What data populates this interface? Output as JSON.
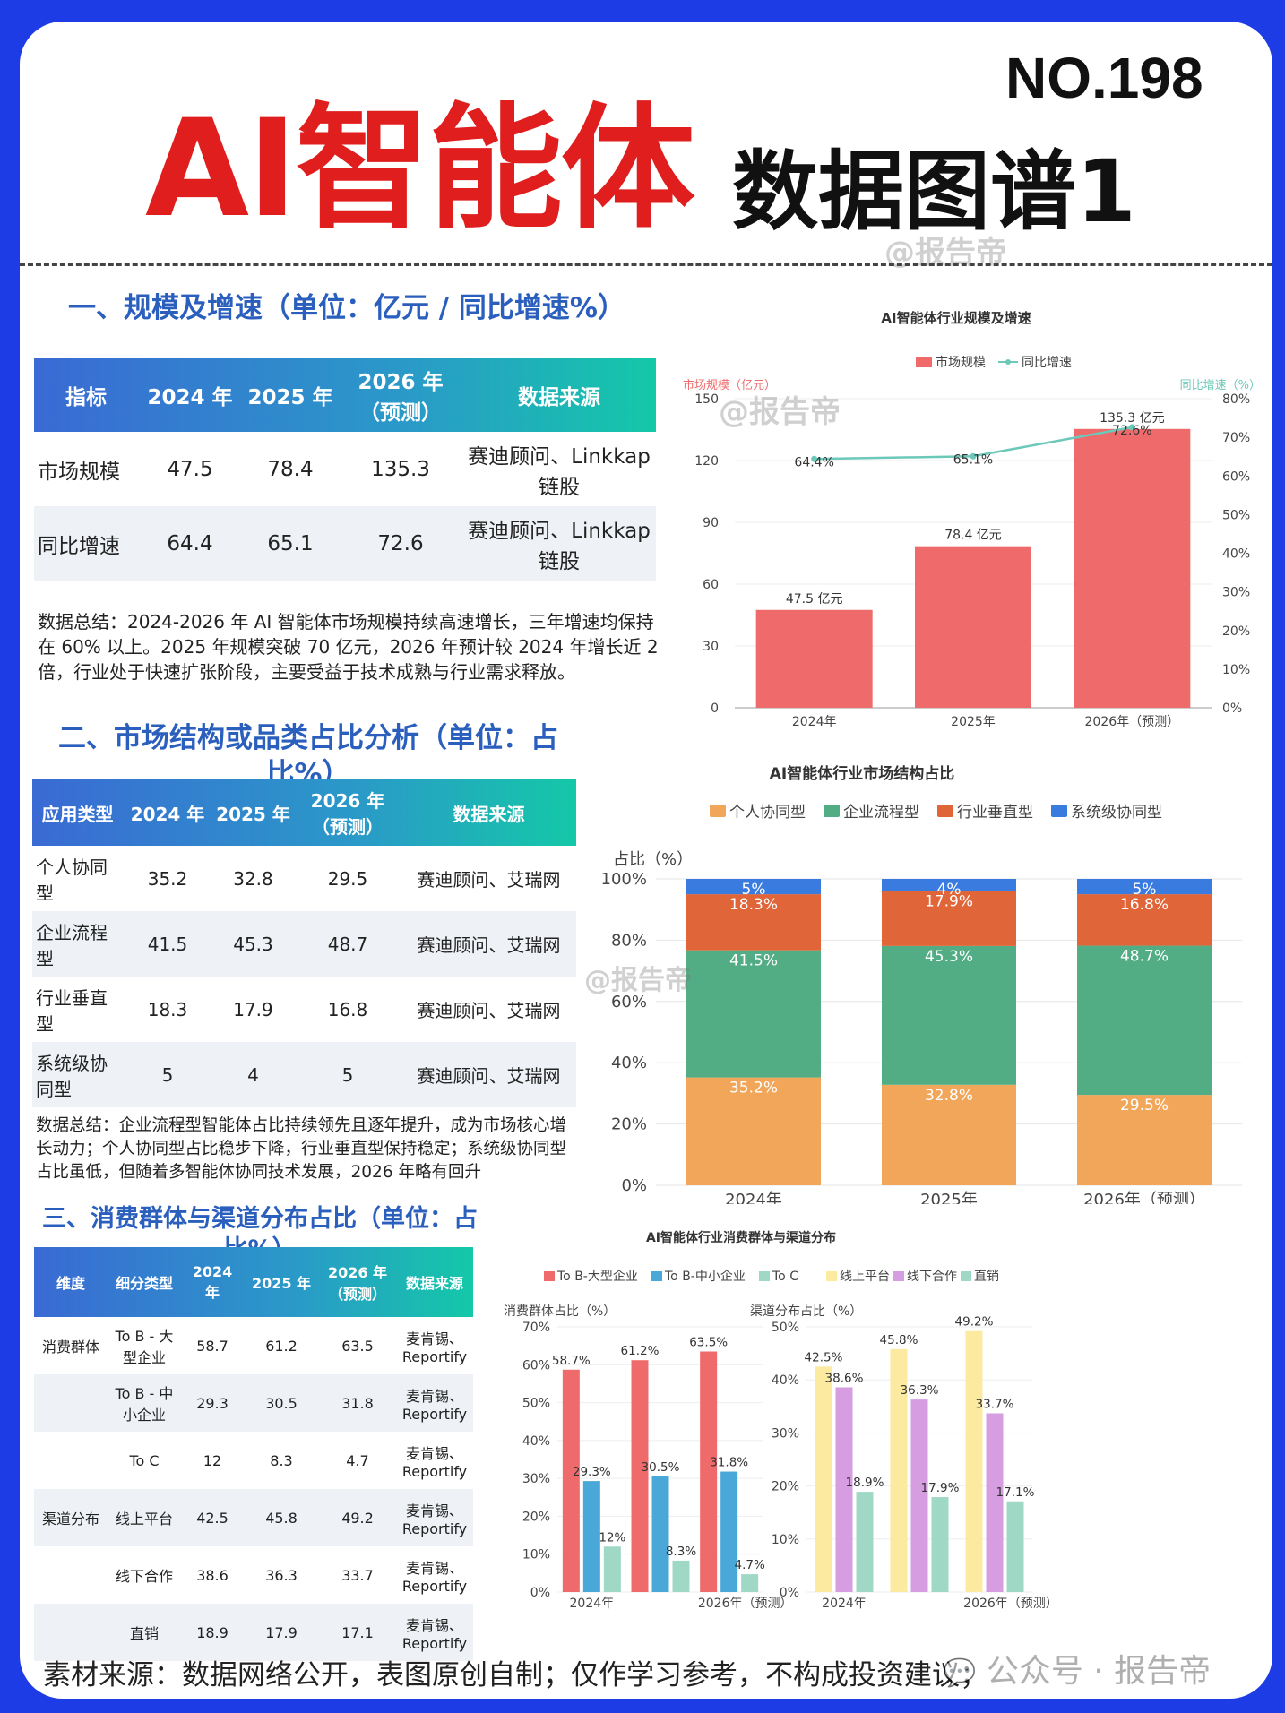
{
  "header": {
    "number": "NO.198",
    "title_main": "AI智能体",
    "title_sub": "数据图谱1",
    "watermark": "@报告帝"
  },
  "section1": {
    "title": "一、规模及增速（单位：亿元 / 同比增速%）",
    "headers": [
      "指标",
      "2024 年",
      "2025 年",
      "2026 年（预测）",
      "数据来源"
    ],
    "rows": [
      [
        "市场规模",
        "47.5",
        "78.4",
        "135.3",
        "赛迪顾问、Linkkap链股"
      ],
      [
        "同比增速",
        "64.4",
        "65.1",
        "72.6",
        "赛迪顾问、Linkkap链股"
      ]
    ],
    "summary": "数据总结：2024-2026 年 AI 智能体市场规模持续高速增长，三年增速均保持在 60% 以上。2025 年规模突破 70 亿元，2026 年预计较 2024 年增长近 2 倍，行业处于快速扩张阶段，主要受益于技术成熟与行业需求释放。"
  },
  "section2": {
    "title": "二、市场结构或品类占比分析（单位：占比%）",
    "headers": [
      "应用类型",
      "2024 年",
      "2025 年",
      "2026 年（预测）",
      "数据来源"
    ],
    "rows": [
      [
        "个人协同型",
        "35.2",
        "32.8",
        "29.5",
        "赛迪顾问、艾瑞网"
      ],
      [
        "企业流程型",
        "41.5",
        "45.3",
        "48.7",
        "赛迪顾问、艾瑞网"
      ],
      [
        "行业垂直型",
        "18.3",
        "17.9",
        "16.8",
        "赛迪顾问、艾瑞网"
      ],
      [
        "系统级协同型",
        "5",
        "4",
        "5",
        "赛迪顾问、艾瑞网"
      ]
    ],
    "summary": "数据总结：企业流程型智能体占比持续领先且逐年提升，成为市场核心增长动力；个人协同型占比稳步下降，行业垂直型保持稳定；系统级协同型占比虽低，但随着多智能体协同技术发展，2026 年略有回升"
  },
  "section3": {
    "title": "三、消费群体与渠道分布占比（单位：占比%）",
    "headers": [
      "维度",
      "细分类型",
      "2024 年",
      "2025 年",
      "2026 年（预测）",
      "数据来源"
    ],
    "rows": [
      [
        "消费群体",
        "To B - 大型企业",
        "58.7",
        "61.2",
        "63.5",
        "麦肯锡、Reportify"
      ],
      [
        "",
        "To B - 中小企业",
        "29.3",
        "30.5",
        "31.8",
        "麦肯锡、Reportify"
      ],
      [
        "",
        "To C",
        "12",
        "8.3",
        "4.7",
        "麦肯锡、Reportify"
      ],
      [
        "渠道分布",
        "线上平台",
        "42.5",
        "45.8",
        "49.2",
        "麦肯锡、Reportify"
      ],
      [
        "",
        "线下合作",
        "38.6",
        "36.3",
        "33.7",
        "麦肯锡、Reportify"
      ],
      [
        "",
        "直销",
        "18.9",
        "17.9",
        "17.1",
        "麦肯锡、Reportify"
      ]
    ]
  },
  "footer": {
    "source": "素材来源：数据网络公开，表图原创自制；仅作学习参考，不构成投资建议；",
    "account": "公众号 · 报告帝"
  },
  "colors": {
    "red": "#ef6b6b",
    "teal": "#6cc8b8",
    "orange": "#f2a65a",
    "green": "#52ad85",
    "vermilion": "#e0663a",
    "blue": "#3a7be0",
    "cyan": "#4aa8d8",
    "mint": "#9fd8c4",
    "yellow": "#fbeaa0",
    "purple": "#d69ee0"
  },
  "chart_data": [
    {
      "type": "bar",
      "title": "AI智能体行业规模及增速",
      "categories": [
        "2024年",
        "2025年",
        "2026年（预测）"
      ],
      "series": [
        {
          "name": "市场规模",
          "values": [
            47.5,
            78.4,
            135.3
          ],
          "labels": [
            "47.5 亿元",
            "78.4 亿元",
            "135.3 亿元"
          ]
        },
        {
          "name": "同比增速",
          "type": "line",
          "values": [
            64.4,
            65.1,
            72.6
          ],
          "labels": [
            "64.4%",
            "65.1%",
            "72.6%"
          ]
        }
      ],
      "ylabel": "市场规模（亿元）",
      "y2label": "同比增速（%）",
      "ylim": [
        0,
        150
      ],
      "yticks": [
        "0",
        "30",
        "60",
        "90",
        "120",
        "150"
      ],
      "y2lim": [
        0,
        80
      ],
      "y2ticks": [
        "0%",
        "10%",
        "20%",
        "30%",
        "40%",
        "50%",
        "60%",
        "70%",
        "80%"
      ],
      "legend": "top"
    },
    {
      "type": "bar",
      "stacked": true,
      "title": "AI智能体行业市场结构占比",
      "categories": [
        "2024年",
        "2025年",
        "2026年（预测）"
      ],
      "series": [
        {
          "name": "个人协同型",
          "values": [
            35.2,
            32.8,
            29.5
          ],
          "labels": [
            "35.2%",
            "32.8%",
            "29.5%"
          ]
        },
        {
          "name": "企业流程型",
          "values": [
            41.5,
            45.3,
            48.7
          ],
          "labels": [
            "41.5%",
            "45.3%",
            "48.7%"
          ]
        },
        {
          "name": "行业垂直型",
          "values": [
            18.3,
            17.9,
            16.8
          ],
          "labels": [
            "18.3%",
            "17.9%",
            "16.8%"
          ]
        },
        {
          "name": "系统级协同型",
          "values": [
            5,
            4,
            5
          ],
          "labels": [
            "5%",
            "4%",
            "5%"
          ]
        }
      ],
      "ylabel": "占比（%）",
      "ylim": [
        0,
        100
      ],
      "yticks": [
        "0%",
        "20%",
        "40%",
        "60%",
        "80%",
        "100%"
      ],
      "legend": "top"
    },
    {
      "type": "bar",
      "title": "AI智能体行业消费群体与渠道分布",
      "legend_entries": [
        "To B-大型企业",
        "To B-中小企业",
        "To C",
        "线上平台",
        "线下合作",
        "直销"
      ],
      "panels": [
        {
          "ylabel": "消费群体占比（%）",
          "ylim": [
            0,
            70
          ],
          "yticks": [
            "0%",
            "10%",
            "20%",
            "30%",
            "40%",
            "50%",
            "60%",
            "70%"
          ],
          "categories": [
            "2024年",
            "",
            "2026年（预测）"
          ],
          "series": [
            {
              "name": "To B-大型企业",
              "values": [
                58.7,
                61.2,
                63.5
              ],
              "labels": [
                "58.7%",
                "61.2%",
                "63.5%"
              ]
            },
            {
              "name": "To B-中小企业",
              "values": [
                29.3,
                30.5,
                31.8
              ],
              "labels": [
                "29.3%",
                "30.5%",
                "31.8%"
              ]
            },
            {
              "name": "To C",
              "values": [
                12,
                8.3,
                4.7
              ],
              "labels": [
                "12%",
                "8.3%",
                "4.7%"
              ]
            }
          ]
        },
        {
          "ylabel": "渠道分布占比（%）",
          "ylim": [
            0,
            50
          ],
          "yticks": [
            "0%",
            "10%",
            "20%",
            "30%",
            "40%",
            "50%"
          ],
          "categories": [
            "2024年",
            "",
            "2026年（预测）"
          ],
          "series": [
            {
              "name": "线上平台",
              "values": [
                42.5,
                45.8,
                49.2
              ],
              "labels": [
                "42.5%",
                "45.8%",
                "49.2%"
              ]
            },
            {
              "name": "线下合作",
              "values": [
                38.6,
                36.3,
                33.7
              ],
              "labels": [
                "38.6%",
                "36.3%",
                "33.7%"
              ]
            },
            {
              "name": "直销",
              "values": [
                18.9,
                17.9,
                17.1
              ],
              "labels": [
                "18.9%",
                "17.9%",
                "17.1%"
              ]
            }
          ]
        }
      ],
      "legend": "top"
    }
  ]
}
